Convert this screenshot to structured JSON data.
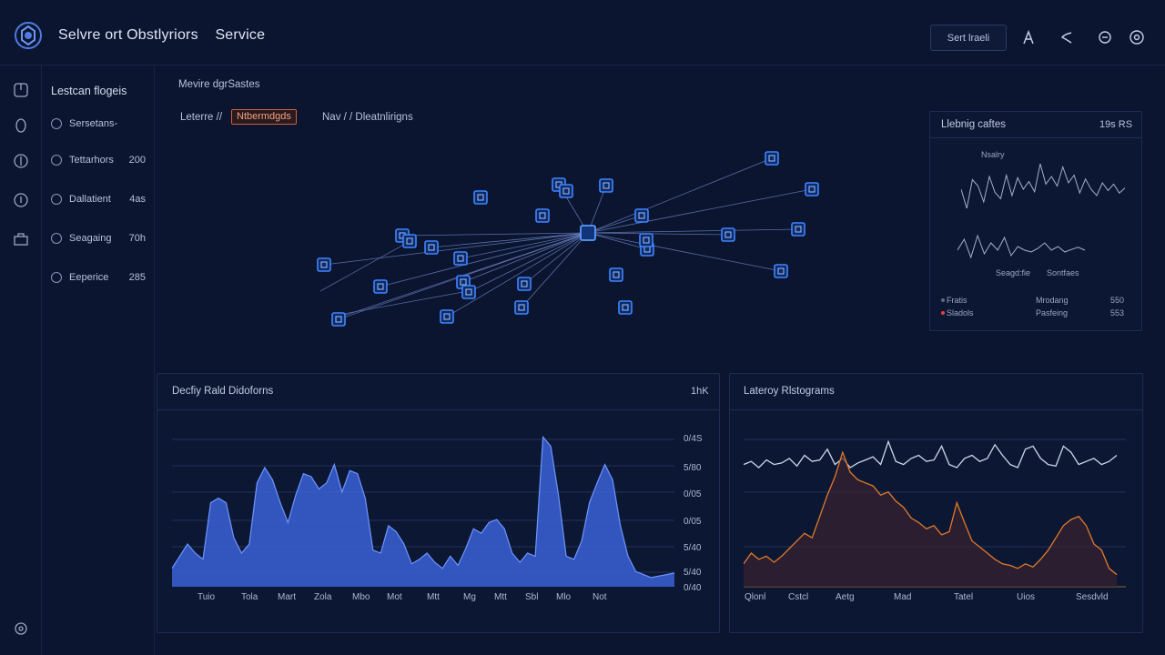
{
  "header": {
    "title": "Selvre ort Obstlyriors",
    "subtitle": "Service",
    "button_label": "Sert lraeli",
    "icons": [
      "user-icon",
      "refresh-icon",
      "alert-icon",
      "power-icon"
    ]
  },
  "rail": {
    "icons": [
      "dashboard-icon",
      "bulb-icon",
      "compass-icon",
      "target-icon",
      "briefcase-icon",
      "settings-icon"
    ]
  },
  "sidebar": {
    "title": "Lestcan flogeis",
    "items": [
      {
        "label": "Sersetans-",
        "value": ""
      },
      {
        "label": "Tettarhors",
        "value": "200"
      },
      {
        "label": "Dallatient",
        "value": "4as"
      },
      {
        "label": "Seagaing",
        "value": "70h"
      },
      {
        "label": "Eeperice",
        "value": "285"
      }
    ]
  },
  "graph": {
    "title": "Mevire dgrSastes",
    "crumb_prefix": "Leterre //",
    "crumb_badge": "Ntbermdgds",
    "crumb_suffix": "Nav / / Dleatnlirigns"
  },
  "mini_panel": {
    "title": "Llebnig caftes",
    "value": "19s RS",
    "chart_label_top": "Nsalry",
    "chart_label_a": "Seagd:fie",
    "chart_label_b": "Sontfaes",
    "legend": [
      {
        "name": "Fratis",
        "metric": "Mrodang",
        "value": "550",
        "color": "#5f6a86"
      },
      {
        "name": "Sladols",
        "metric": "Pasfeing",
        "value": "553",
        "color": "#e0403c"
      }
    ]
  },
  "left_chart_panel": {
    "title": "Decfiy Rald Didoforns",
    "value": "1hK",
    "y_ticks": [
      "0/4S",
      "5/80",
      "0/05",
      "0/05",
      "5/40",
      "5/40",
      "0/40"
    ],
    "x_ticks": [
      "Tuio",
      "Tola",
      "Mart",
      "Zola",
      "Mbo",
      "Mot",
      "Mtt",
      "Mg",
      "Mtt",
      "Sbl",
      "Mlo",
      "Not"
    ]
  },
  "right_chart_panel": {
    "title": "Lateroy Rlstograms",
    "x_ticks": [
      "Qlonl",
      "Cstcl",
      "Aetg",
      "Mad",
      "Tatel",
      "Uios",
      "Sesdvld"
    ]
  },
  "chart_data": [
    {
      "type": "area",
      "series": [
        {
          "values": [
            0.12,
            0.2,
            0.28,
            0.22,
            0.18,
            0.55,
            0.58,
            0.55,
            0.32,
            0.22,
            0.28,
            0.68,
            0.78,
            0.7,
            0.55,
            0.42,
            0.6,
            0.74,
            0.72,
            0.64,
            0.68,
            0.8,
            0.62,
            0.76,
            0.74,
            0.58,
            0.24,
            0.22,
            0.4,
            0.36,
            0.28,
            0.15,
            0.18,
            0.22,
            0.16,
            0.12,
            0.2,
            0.14,
            0.25,
            0.38,
            0.35,
            0.42,
            0.44,
            0.38,
            0.22,
            0.16,
            0.22,
            0.2,
            0.98,
            0.92,
            0.6,
            0.2,
            0.18,
            0.3,
            0.55,
            0.68,
            0.8,
            0.7,
            0.4,
            0.2,
            0.1,
            0.08,
            0.06,
            0.07,
            0.08,
            0.09
          ],
          "color": "#3a62d6"
        }
      ],
      "ylim": [
        0,
        1
      ],
      "grid": true
    },
    {
      "type": "line",
      "series": [
        {
          "values": [
            0.8,
            0.82,
            0.78,
            0.83,
            0.8,
            0.81,
            0.84,
            0.79,
            0.86,
            0.82,
            0.83,
            0.9,
            0.8,
            0.84,
            0.78,
            0.81,
            0.83,
            0.85,
            0.8,
            0.95,
            0.82,
            0.8,
            0.84,
            0.86,
            0.82,
            0.83,
            0.92,
            0.8,
            0.78,
            0.84,
            0.86,
            0.82,
            0.84,
            0.93,
            0.86,
            0.8,
            0.78,
            0.9,
            0.92,
            0.84,
            0.8,
            0.79,
            0.92,
            0.88,
            0.8,
            0.82,
            0.84,
            0.8,
            0.82,
            0.86
          ],
          "color": "#cfd6e8"
        },
        {
          "values": [
            0.15,
            0.22,
            0.18,
            0.2,
            0.16,
            0.2,
            0.25,
            0.3,
            0.35,
            0.32,
            0.46,
            0.6,
            0.72,
            0.88,
            0.75,
            0.7,
            0.68,
            0.66,
            0.6,
            0.62,
            0.56,
            0.52,
            0.45,
            0.42,
            0.38,
            0.4,
            0.34,
            0.36,
            0.55,
            0.42,
            0.3,
            0.26,
            0.22,
            0.18,
            0.15,
            0.14,
            0.12,
            0.15,
            0.13,
            0.18,
            0.24,
            0.32,
            0.4,
            0.44,
            0.46,
            0.4,
            0.28,
            0.24,
            0.12,
            0.08
          ],
          "color": "#e07a28"
        }
      ],
      "ylim": [
        0,
        1
      ],
      "grid": true
    },
    {
      "type": "line",
      "series": [
        {
          "values": [
            0.5,
            0.2,
            0.65,
            0.55,
            0.3,
            0.7,
            0.45,
            0.35,
            0.72,
            0.4,
            0.68,
            0.5,
            0.62,
            0.46,
            0.9,
            0.58,
            0.7,
            0.55,
            0.85,
            0.6,
            0.72,
            0.44,
            0.66,
            0.5,
            0.4,
            0.6,
            0.48,
            0.58,
            0.44,
            0.52
          ],
          "color": "#a6b0c8"
        },
        {
          "values": [
            0.5,
            0.8,
            0.3,
            0.9,
            0.4,
            0.7,
            0.5,
            0.85,
            0.35,
            0.6,
            0.5,
            0.45,
            0.55,
            0.7,
            0.5,
            0.6,
            0.45,
            0.52,
            0.58,
            0.5
          ],
          "color": "#a6b0c8"
        }
      ],
      "ylim": [
        0,
        1
      ]
    }
  ]
}
